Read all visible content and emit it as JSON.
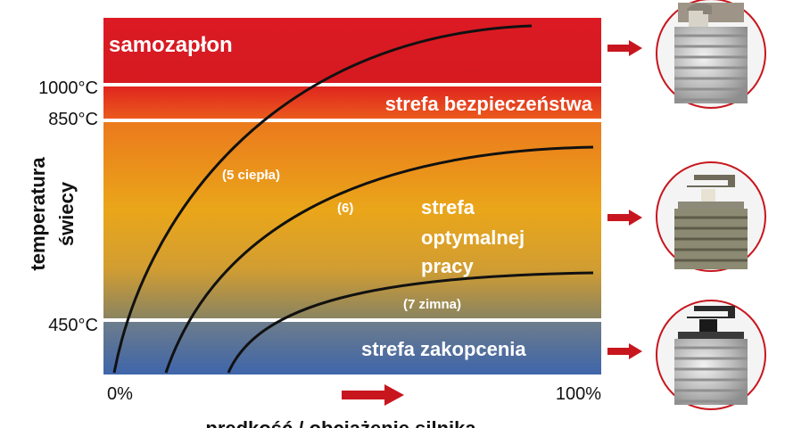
{
  "chart_data": {
    "type": "line",
    "title": "",
    "xlabel": "prędkość / obciążenie silnika",
    "ylabel": "temperatura świecy",
    "xlim": [
      0,
      100
    ],
    "x_tick_labels": [
      "0%",
      "100%"
    ],
    "y_tick_labels": [
      "1000°C",
      "850°C",
      "450°C"
    ],
    "zones": [
      {
        "label": "samozapłon",
        "color": "#dd1a24"
      },
      {
        "label": "strefa bezpieczeństwa",
        "color": "#e8401c"
      },
      {
        "label": "strefa optymalnej pracy",
        "label_lines": [
          "strefa",
          "optymalnej",
          "pracy"
        ],
        "color": "#e9a51a"
      },
      {
        "label": "strefa zakopcenia",
        "color": "#4e74a8"
      }
    ],
    "series": [
      {
        "name": "(5 ciepła)",
        "color": "#111111"
      },
      {
        "name": "(6)",
        "color": "#111111"
      },
      {
        "name": "(7 zimna)",
        "color": "#111111"
      }
    ],
    "direction_arrow_color": "#c8161e"
  }
}
